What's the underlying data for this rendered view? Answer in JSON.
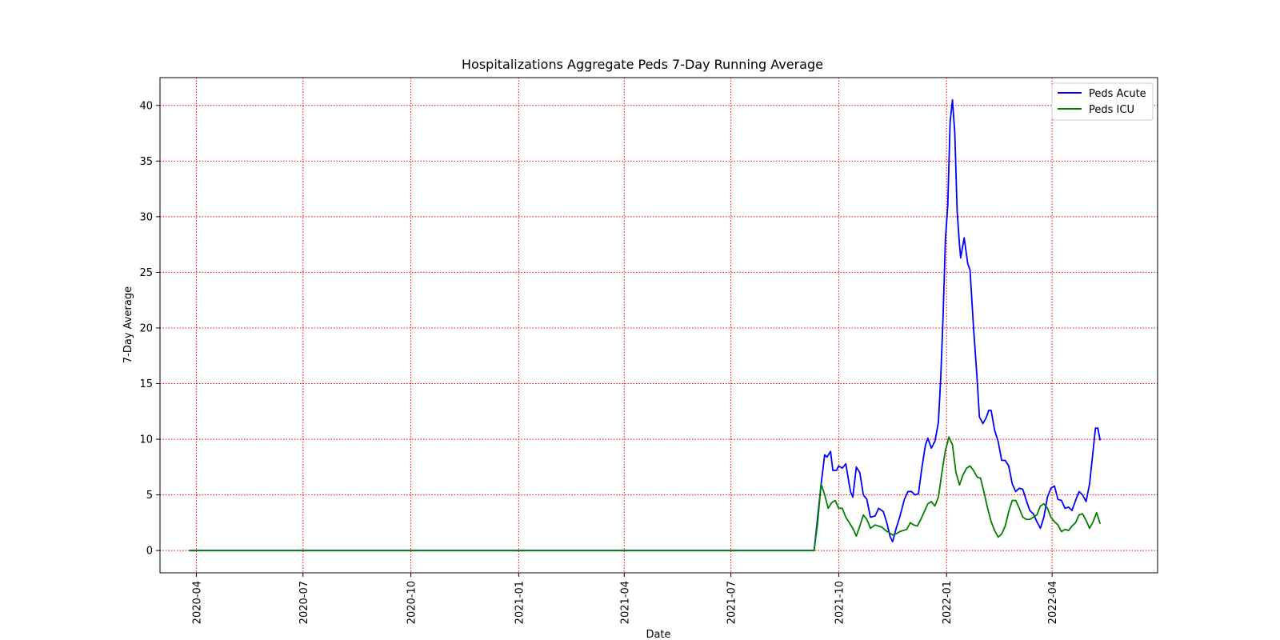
{
  "chart_data": {
    "type": "line",
    "title": "Hospitalizations Aggregate Peds 7-Day Running Average",
    "xlabel": "Date",
    "ylabel": "7-Day Average",
    "xlim": [
      "2020-03-01",
      "2022-06-30"
    ],
    "ylim": [
      -2,
      42.5
    ],
    "x_ticks": [
      "2020-04",
      "2020-07",
      "2020-10",
      "2021-01",
      "2021-04",
      "2021-07",
      "2021-10",
      "2022-01",
      "2022-04"
    ],
    "y_ticks": [
      0,
      5,
      10,
      15,
      20,
      25,
      30,
      35,
      40
    ],
    "grid": true,
    "grid_color": "#ff0000",
    "legend_position": "top-right",
    "series": [
      {
        "name": "Peds Acute",
        "color": "#0000ff",
        "points": [
          [
            "2020-03-26",
            0
          ],
          [
            "2021-09-10",
            0
          ],
          [
            "2021-09-13",
            3
          ],
          [
            "2021-09-16",
            6
          ],
          [
            "2021-09-19",
            8.6
          ],
          [
            "2021-09-21",
            8.4
          ],
          [
            "2021-09-24",
            8.9
          ],
          [
            "2021-09-26",
            7.2
          ],
          [
            "2021-09-29",
            7.2
          ],
          [
            "2021-10-01",
            7.6
          ],
          [
            "2021-10-04",
            7.4
          ],
          [
            "2021-10-07",
            7.8
          ],
          [
            "2021-10-11",
            5.3
          ],
          [
            "2021-10-13",
            4.8
          ],
          [
            "2021-10-16",
            7.5
          ],
          [
            "2021-10-19",
            7.0
          ],
          [
            "2021-10-22",
            5.0
          ],
          [
            "2021-10-25",
            4.6
          ],
          [
            "2021-10-28",
            3.0
          ],
          [
            "2021-11-01",
            3.1
          ],
          [
            "2021-11-04",
            3.8
          ],
          [
            "2021-11-08",
            3.5
          ],
          [
            "2021-11-11",
            2.5
          ],
          [
            "2021-11-14",
            1.2
          ],
          [
            "2021-11-16",
            0.8
          ],
          [
            "2021-11-19",
            2.0
          ],
          [
            "2021-11-22",
            3.0
          ],
          [
            "2021-11-26",
            4.6
          ],
          [
            "2021-11-29",
            5.3
          ],
          [
            "2021-12-02",
            5.3
          ],
          [
            "2021-12-05",
            5.0
          ],
          [
            "2021-12-08",
            5.1
          ],
          [
            "2021-12-11",
            7.5
          ],
          [
            "2021-12-14",
            9.5
          ],
          [
            "2021-12-16",
            10.1
          ],
          [
            "2021-12-19",
            9.2
          ],
          [
            "2021-12-22",
            9.8
          ],
          [
            "2021-12-25",
            11.5
          ],
          [
            "2021-12-27",
            15.5
          ],
          [
            "2021-12-29",
            21
          ],
          [
            "2021-12-31",
            28
          ],
          [
            "2022-01-02",
            31
          ],
          [
            "2022-01-04",
            38.5
          ],
          [
            "2022-01-06",
            40.5
          ],
          [
            "2022-01-08",
            37.5
          ],
          [
            "2022-01-10",
            30.5
          ],
          [
            "2022-01-12",
            27.5
          ],
          [
            "2022-01-13",
            26.3
          ],
          [
            "2022-01-16",
            28.1
          ],
          [
            "2022-01-19",
            25.8
          ],
          [
            "2022-01-21",
            25.2
          ],
          [
            "2022-01-24",
            20
          ],
          [
            "2022-01-27",
            15.5
          ],
          [
            "2022-01-29",
            12.0
          ],
          [
            "2022-02-01",
            11.4
          ],
          [
            "2022-02-04",
            12.0
          ],
          [
            "2022-02-06",
            12.6
          ],
          [
            "2022-02-08",
            12.6
          ],
          [
            "2022-02-11",
            10.8
          ],
          [
            "2022-02-14",
            9.8
          ],
          [
            "2022-02-17",
            8.1
          ],
          [
            "2022-02-20",
            8.1
          ],
          [
            "2022-02-23",
            7.6
          ],
          [
            "2022-02-26",
            6.0
          ],
          [
            "2022-03-01",
            5.3
          ],
          [
            "2022-03-04",
            5.6
          ],
          [
            "2022-03-07",
            5.5
          ],
          [
            "2022-03-10",
            4.5
          ],
          [
            "2022-03-13",
            3.6
          ],
          [
            "2022-03-16",
            3.3
          ],
          [
            "2022-03-19",
            2.6
          ],
          [
            "2022-03-22",
            2.0
          ],
          [
            "2022-03-25",
            3.0
          ],
          [
            "2022-03-28",
            4.8
          ],
          [
            "2022-03-31",
            5.6
          ],
          [
            "2022-04-03",
            5.8
          ],
          [
            "2022-04-06",
            4.6
          ],
          [
            "2022-04-09",
            4.5
          ],
          [
            "2022-04-12",
            3.8
          ],
          [
            "2022-04-15",
            3.9
          ],
          [
            "2022-04-18",
            3.6
          ],
          [
            "2022-04-21",
            4.5
          ],
          [
            "2022-04-24",
            5.3
          ],
          [
            "2022-04-27",
            5.0
          ],
          [
            "2022-04-30",
            4.4
          ],
          [
            "2022-05-03",
            6.0
          ],
          [
            "2022-05-06",
            9.0
          ],
          [
            "2022-05-08",
            11.0
          ],
          [
            "2022-05-10",
            11.0
          ],
          [
            "2022-05-12",
            9.9
          ]
        ]
      },
      {
        "name": "Peds ICU",
        "color": "#008000",
        "points": [
          [
            "2020-03-26",
            0
          ],
          [
            "2021-09-10",
            0
          ],
          [
            "2021-09-13",
            2.5
          ],
          [
            "2021-09-16",
            6.0
          ],
          [
            "2021-09-19",
            5.0
          ],
          [
            "2021-09-22",
            3.8
          ],
          [
            "2021-09-25",
            4.3
          ],
          [
            "2021-09-28",
            4.5
          ],
          [
            "2021-10-01",
            3.8
          ],
          [
            "2021-10-04",
            3.8
          ],
          [
            "2021-10-07",
            3.0
          ],
          [
            "2021-10-10",
            2.5
          ],
          [
            "2021-10-13",
            2.0
          ],
          [
            "2021-10-16",
            1.3
          ],
          [
            "2021-10-19",
            2.2
          ],
          [
            "2021-10-22",
            3.2
          ],
          [
            "2021-10-25",
            2.8
          ],
          [
            "2021-10-28",
            2.0
          ],
          [
            "2021-11-01",
            2.3
          ],
          [
            "2021-11-04",
            2.2
          ],
          [
            "2021-11-07",
            2.1
          ],
          [
            "2021-11-10",
            1.8
          ],
          [
            "2021-11-13",
            1.6
          ],
          [
            "2021-11-16",
            1.4
          ],
          [
            "2021-11-19",
            1.5
          ],
          [
            "2021-11-22",
            1.7
          ],
          [
            "2021-11-25",
            1.8
          ],
          [
            "2021-11-28",
            1.9
          ],
          [
            "2021-12-01",
            2.5
          ],
          [
            "2021-12-04",
            2.3
          ],
          [
            "2021-12-07",
            2.2
          ],
          [
            "2021-12-10",
            2.8
          ],
          [
            "2021-12-13",
            3.5
          ],
          [
            "2021-12-16",
            4.2
          ],
          [
            "2021-12-19",
            4.4
          ],
          [
            "2021-12-22",
            4.0
          ],
          [
            "2021-12-25",
            4.8
          ],
          [
            "2021-12-28",
            7.0
          ],
          [
            "2021-12-31",
            9.0
          ],
          [
            "2022-01-03",
            10.2
          ],
          [
            "2022-01-06",
            9.5
          ],
          [
            "2022-01-09",
            7.0
          ],
          [
            "2022-01-12",
            5.9
          ],
          [
            "2022-01-15",
            6.8
          ],
          [
            "2022-01-18",
            7.4
          ],
          [
            "2022-01-21",
            7.6
          ],
          [
            "2022-01-24",
            7.2
          ],
          [
            "2022-01-27",
            6.6
          ],
          [
            "2022-01-30",
            6.5
          ],
          [
            "2022-02-02",
            5.2
          ],
          [
            "2022-02-05",
            3.8
          ],
          [
            "2022-02-08",
            2.6
          ],
          [
            "2022-02-11",
            1.8
          ],
          [
            "2022-02-14",
            1.2
          ],
          [
            "2022-02-17",
            1.5
          ],
          [
            "2022-02-20",
            2.2
          ],
          [
            "2022-02-23",
            3.5
          ],
          [
            "2022-02-26",
            4.5
          ],
          [
            "2022-03-01",
            4.5
          ],
          [
            "2022-03-04",
            3.8
          ],
          [
            "2022-03-07",
            3.0
          ],
          [
            "2022-03-10",
            2.8
          ],
          [
            "2022-03-13",
            2.8
          ],
          [
            "2022-03-16",
            3.0
          ],
          [
            "2022-03-19",
            3.2
          ],
          [
            "2022-03-22",
            4.0
          ],
          [
            "2022-03-25",
            4.2
          ],
          [
            "2022-03-28",
            3.8
          ],
          [
            "2022-03-31",
            3.0
          ],
          [
            "2022-04-03",
            2.6
          ],
          [
            "2022-04-06",
            2.3
          ],
          [
            "2022-04-09",
            1.7
          ],
          [
            "2022-04-12",
            1.9
          ],
          [
            "2022-04-15",
            1.8
          ],
          [
            "2022-04-18",
            2.2
          ],
          [
            "2022-04-21",
            2.5
          ],
          [
            "2022-04-24",
            3.2
          ],
          [
            "2022-04-27",
            3.3
          ],
          [
            "2022-04-30",
            2.7
          ],
          [
            "2022-05-03",
            2.0
          ],
          [
            "2022-05-06",
            2.6
          ],
          [
            "2022-05-09",
            3.4
          ],
          [
            "2022-05-12",
            2.4
          ]
        ]
      }
    ]
  }
}
